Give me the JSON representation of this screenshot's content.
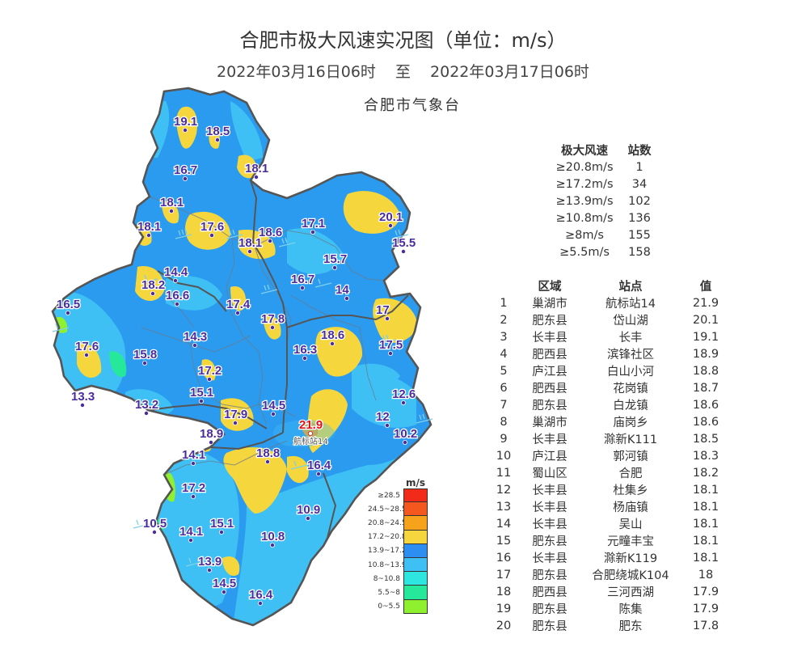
{
  "title": "合肥市极大风速实况图（单位：m/s）",
  "period": {
    "start": "2022年03月16日06时",
    "separator": "至",
    "end": "2022年03月17日06时"
  },
  "agency": "合肥市气象台",
  "colors": {
    "border": "#555555",
    "base": "#2b9bf0",
    "light": "#3ec0f5",
    "yellow": "#f5d63d",
    "orange": "#f7a21b",
    "label": "#4a2c9e",
    "max_label": "#e0121a"
  },
  "legend": {
    "title": "m/s",
    "items": [
      {
        "label": "≥28.5",
        "color": "#f22a1a"
      },
      {
        "label": "24.5~28.5",
        "color": "#f5581e"
      },
      {
        "label": "20.8~24.5",
        "color": "#f7a21b"
      },
      {
        "label": "17.2~20.8",
        "color": "#f5d63d"
      },
      {
        "label": "13.9~17.2",
        "color": "#2b8ef0"
      },
      {
        "label": "10.8~13.9",
        "color": "#3ec0f5"
      },
      {
        "label": "8~10.8",
        "color": "#2ee6e0"
      },
      {
        "label": "5.5~8",
        "color": "#26e89a"
      },
      {
        "label": "0~5.5",
        "color": "#8ef02e"
      }
    ]
  },
  "stats": {
    "headers": [
      "极大风速",
      "站数"
    ],
    "rows": [
      [
        "≥20.8m/s",
        "1"
      ],
      [
        "≥17.2m/s",
        "34"
      ],
      [
        "≥13.9m/s",
        "102"
      ],
      [
        "≥10.8m/s",
        "136"
      ],
      [
        "≥8m/s",
        "155"
      ],
      [
        "≥5.5m/s",
        "158"
      ]
    ]
  },
  "ranking": {
    "headers": [
      "",
      "区域",
      "站点",
      "值"
    ],
    "rows": [
      [
        "1",
        "巢湖市",
        "航标站14",
        "21.9"
      ],
      [
        "2",
        "肥东县",
        "岱山湖",
        "20.1"
      ],
      [
        "3",
        "长丰县",
        "长丰",
        "19.1"
      ],
      [
        "4",
        "肥西县",
        "滨锋社区",
        "18.9"
      ],
      [
        "5",
        "庐江县",
        "白山小河",
        "18.8"
      ],
      [
        "6",
        "肥西县",
        "花岗镇",
        "18.7"
      ],
      [
        "7",
        "肥东县",
        "白龙镇",
        "18.6"
      ],
      [
        "8",
        "巢湖市",
        "庙岗乡",
        "18.6"
      ],
      [
        "9",
        "长丰县",
        "滁新K111",
        "18.5"
      ],
      [
        "10",
        "庐江县",
        "郭河镇",
        "18.3"
      ],
      [
        "11",
        "蜀山区",
        "合肥",
        "18.2"
      ],
      [
        "12",
        "长丰县",
        "杜集乡",
        "18.1"
      ],
      [
        "13",
        "长丰县",
        "杨庙镇",
        "18.1"
      ],
      [
        "14",
        "长丰县",
        "吴山",
        "18.1"
      ],
      [
        "15",
        "肥东县",
        "元疃丰宝",
        "18.1"
      ],
      [
        "16",
        "长丰县",
        "滁新K119",
        "18.1"
      ],
      [
        "17",
        "肥东县",
        "合肥绕城K104",
        "18"
      ],
      [
        "18",
        "肥西县",
        "三河西湖",
        "17.9"
      ],
      [
        "19",
        "肥东县",
        "陈集",
        "17.9"
      ],
      [
        "20",
        "肥东县",
        "肥东",
        "17.8"
      ]
    ]
  },
  "map": {
    "max_station_name": "航标站14",
    "station_values": [
      "19.1",
      "18.5",
      "16.7",
      "18.1",
      "18.1",
      "18.1",
      "17.6",
      "18.6",
      "18.1",
      "17.1",
      "20.1",
      "15.5",
      "14.4",
      "15.7",
      "18.2",
      "16.6",
      "16.7",
      "14",
      "16.5",
      "17.4",
      "17",
      "17.8",
      "17.6",
      "14.3",
      "18.6",
      "15.8",
      "16.3",
      "17.5",
      "17.2",
      "13.3",
      "15.1",
      "13.2",
      "12.6",
      "14.5",
      "17.9",
      "21.9",
      "12",
      "18.9",
      "10.2",
      "14.1",
      "18.8",
      "16.4",
      "17.2",
      "10.9",
      "10.5",
      "14.1",
      "15.1",
      "10.8",
      "13.9",
      "14.5",
      "16.4"
    ]
  }
}
